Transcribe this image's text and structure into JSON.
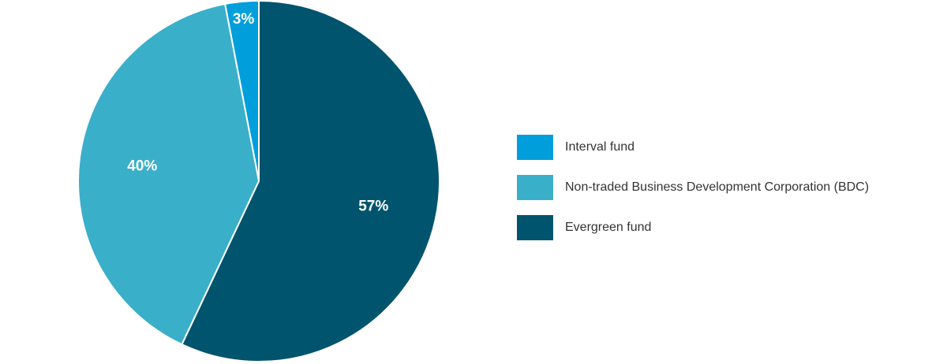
{
  "chart_data": {
    "type": "pie",
    "categories": [
      "Interval fund",
      "Non-traded Business Development Corporation (BDC)",
      "Evergreen fund"
    ],
    "values": [
      3,
      40,
      57
    ],
    "value_labels": [
      "3%",
      "40%",
      "57%"
    ],
    "colors": [
      "#009fdb",
      "#3aafc9",
      "#00546e"
    ],
    "legend": "right"
  }
}
